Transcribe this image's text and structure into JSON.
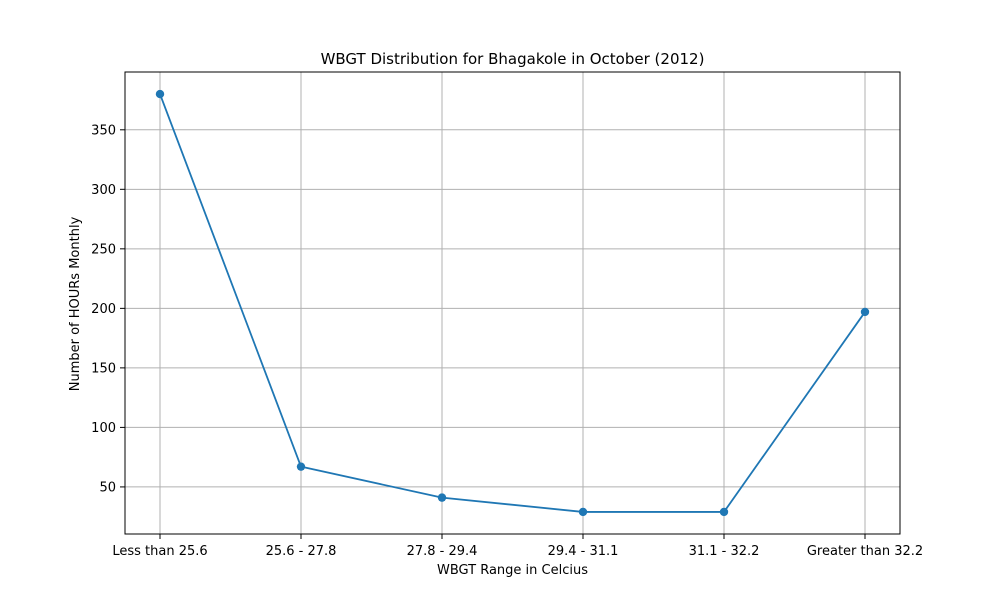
{
  "chart_data": {
    "type": "line",
    "title": "WBGT Distribution for Bhagakole in October (2012)",
    "xlabel": "WBGT Range in Celcius",
    "ylabel": "Number of HOURs Monthly",
    "categories": [
      "Less than 25.6",
      "25.6 - 27.8",
      "27.8 - 29.4",
      "29.4 - 31.1",
      "31.1 - 32.2",
      "Greater than 32.2"
    ],
    "series": [
      {
        "values": [
          380,
          67,
          41,
          29,
          29,
          197
        ],
        "color": "#1f77b4",
        "marker": "circle"
      }
    ],
    "ylim": [
      10.45,
      398.55
    ],
    "yticks": [
      50,
      100,
      150,
      200,
      250,
      300,
      350
    ],
    "grid": true,
    "legend": "none"
  }
}
